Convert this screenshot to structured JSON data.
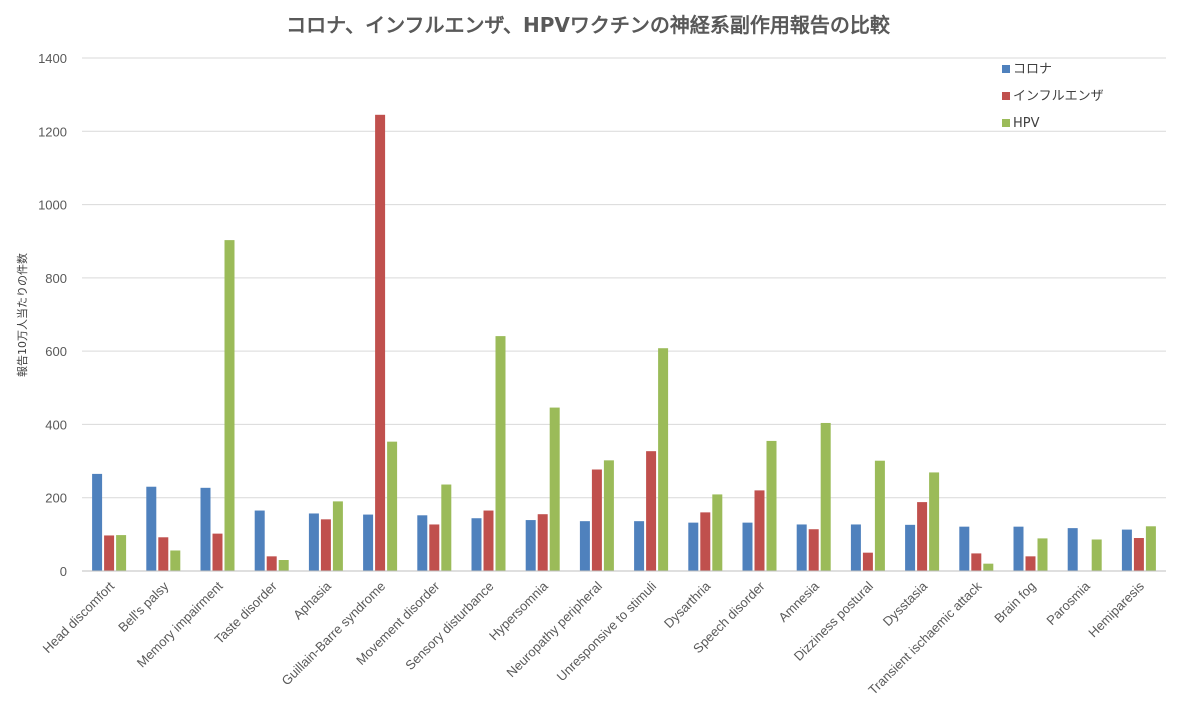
{
  "chart_data": {
    "type": "bar",
    "title": "コロナ、インフルエンザ、HPVワクチンの神経系副作用報告の比較",
    "xlabel": "",
    "ylabel": "報告10万人当たりの件数",
    "ylim": [
      0,
      1400
    ],
    "yticks": [
      0,
      200,
      400,
      600,
      800,
      1000,
      1200,
      1400
    ],
    "grid": true,
    "legend_position": "top-right",
    "categories": [
      "Head discomfort",
      "Bell's palsy",
      "Memory impairment",
      "Taste disorder",
      "Aphasia",
      "Guillain-Barre syndrome",
      "Movement disorder",
      "Sensory disturbance",
      "Hypersomnia",
      "Neuropathy peripheral",
      "Unresponsive to stimuli",
      "Dysarthria",
      "Speech disorder",
      "Amnesia",
      "Dizziness postural",
      "Dysstasia",
      "Transient ischaemic attack",
      "Brain fog",
      "Parosmia",
      "Hemiparesis"
    ],
    "series": [
      {
        "name": "コロナ",
        "color": "#4f81bd",
        "values": [
          265,
          230,
          227,
          165,
          157,
          154,
          152,
          144,
          139,
          136,
          136,
          132,
          132,
          127,
          127,
          126,
          121,
          121,
          117,
          113
        ]
      },
      {
        "name": "インフルエンザ",
        "color": "#c0504d",
        "values": [
          97,
          92,
          102,
          40,
          141,
          1245,
          127,
          165,
          155,
          277,
          327,
          160,
          220,
          114,
          50,
          188,
          48,
          40,
          0,
          90
        ]
      },
      {
        "name": "HPV",
        "color": "#9bbb59",
        "values": [
          98,
          56,
          903,
          30,
          190,
          353,
          236,
          641,
          446,
          302,
          608,
          209,
          355,
          404,
          301,
          269,
          20,
          89,
          86,
          122
        ]
      }
    ]
  }
}
